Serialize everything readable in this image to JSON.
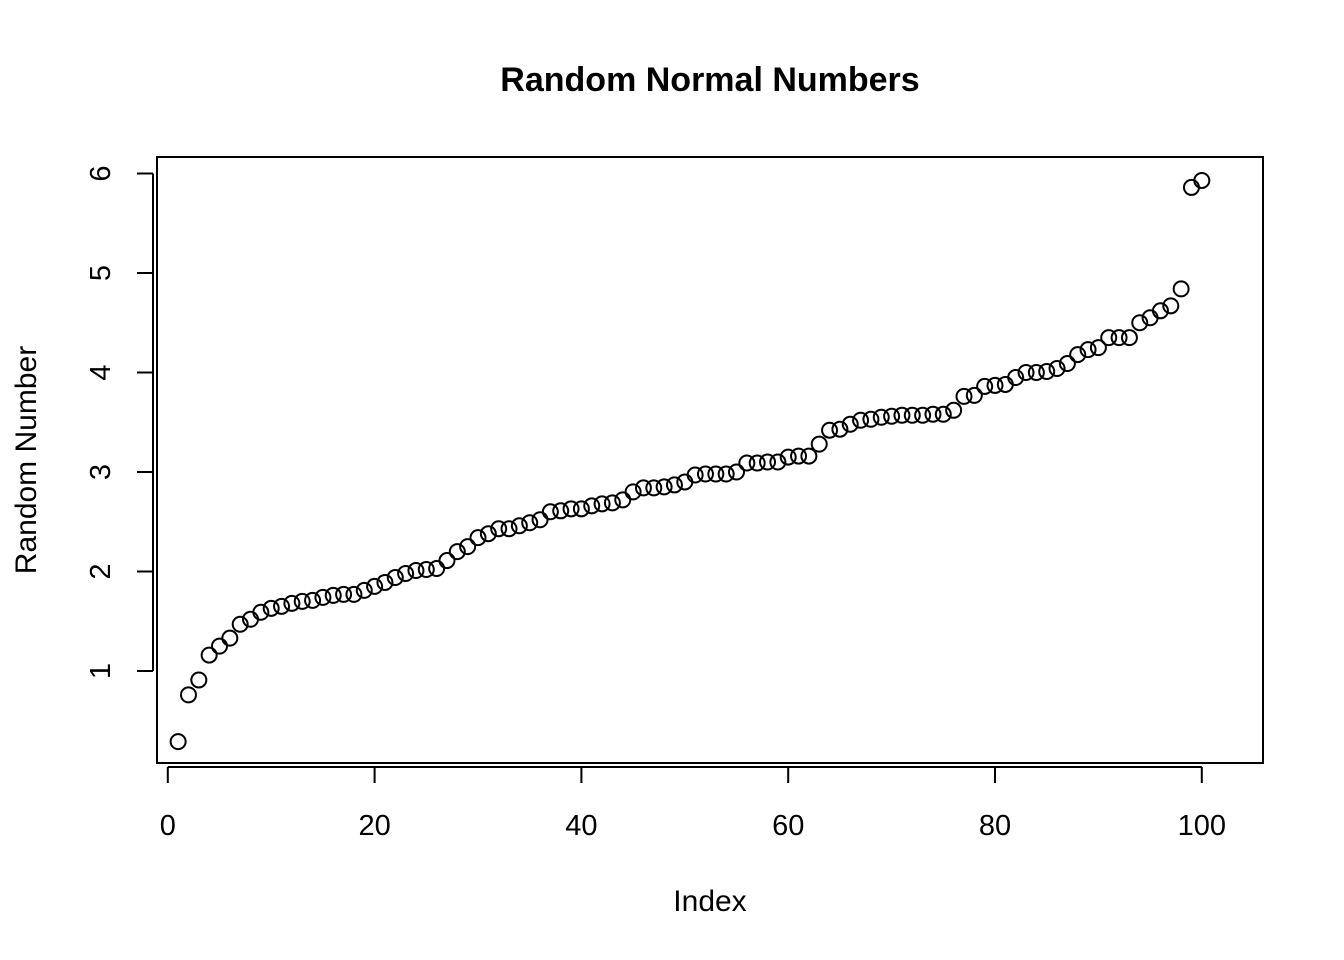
{
  "chart_data": {
    "type": "scatter",
    "title": "Random Normal Numbers",
    "xlabel": "Index",
    "ylabel": "Random Number",
    "xlim": [
      0,
      100
    ],
    "ylim": [
      0.3,
      5.93
    ],
    "x_ticks": [
      0,
      20,
      40,
      60,
      80,
      100
    ],
    "y_ticks": [
      1,
      2,
      3,
      4,
      5,
      6
    ],
    "grid": false,
    "legend": "none",
    "marker": "open-circle",
    "series": [
      {
        "x": [
          1,
          2,
          3,
          4,
          5,
          6,
          7,
          8,
          9,
          10,
          11,
          12,
          13,
          14,
          15,
          16,
          17,
          18,
          19,
          20,
          21,
          22,
          23,
          24,
          25,
          26,
          27,
          28,
          29,
          30,
          31,
          32,
          33,
          34,
          35,
          36,
          37,
          38,
          39,
          40,
          41,
          42,
          43,
          44,
          45,
          46,
          47,
          48,
          49,
          50,
          51,
          52,
          53,
          54,
          55,
          56,
          57,
          58,
          59,
          60,
          61,
          62,
          63,
          64,
          65,
          66,
          67,
          68,
          69,
          70,
          71,
          72,
          73,
          74,
          75,
          76,
          77,
          78,
          79,
          80,
          81,
          82,
          83,
          84,
          85,
          86,
          87,
          88,
          89,
          90,
          91,
          92,
          93,
          94,
          95,
          96,
          97,
          98,
          99,
          100
        ],
        "values": [
          0.29,
          0.76,
          0.91,
          1.16,
          1.25,
          1.33,
          1.47,
          1.52,
          1.59,
          1.63,
          1.65,
          1.68,
          1.7,
          1.71,
          1.74,
          1.76,
          1.77,
          1.77,
          1.81,
          1.85,
          1.89,
          1.94,
          1.98,
          2.01,
          2.02,
          2.03,
          2.11,
          2.2,
          2.25,
          2.34,
          2.38,
          2.43,
          2.43,
          2.46,
          2.49,
          2.52,
          2.6,
          2.61,
          2.63,
          2.63,
          2.66,
          2.68,
          2.69,
          2.72,
          2.8,
          2.84,
          2.84,
          2.85,
          2.87,
          2.9,
          2.97,
          2.98,
          2.98,
          2.98,
          3.0,
          3.09,
          3.09,
          3.1,
          3.1,
          3.15,
          3.16,
          3.16,
          3.28,
          3.42,
          3.43,
          3.48,
          3.52,
          3.53,
          3.55,
          3.56,
          3.57,
          3.57,
          3.57,
          3.58,
          3.58,
          3.62,
          3.76,
          3.77,
          3.86,
          3.87,
          3.88,
          3.95,
          4.0,
          4.0,
          4.01,
          4.04,
          4.09,
          4.18,
          4.23,
          4.25,
          4.35,
          4.35,
          4.35,
          4.5,
          4.55,
          4.62,
          4.67,
          4.84,
          5.86,
          5.93
        ]
      }
    ]
  }
}
